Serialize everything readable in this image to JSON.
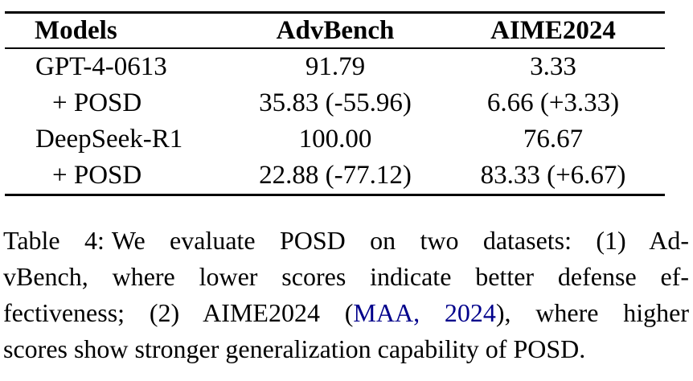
{
  "colors": {
    "text": "#000000",
    "rule": "#000000",
    "citation_link": "#00008b",
    "background": "#ffffff"
  },
  "table": {
    "columns": [
      "Models",
      "AdvBench",
      "AIME2024"
    ],
    "rows": [
      {
        "model": "GPT-4-0613",
        "advbench": "91.79",
        "aime2024": "3.33"
      },
      {
        "model": "+ POSD",
        "advbench": "35.83 (-55.96)",
        "aime2024": "6.66 (+3.33)"
      },
      {
        "model": "DeepSeek-R1",
        "advbench": "100.00",
        "aime2024": "76.67"
      },
      {
        "model": "+ POSD",
        "advbench": "22.88 (-77.12)",
        "aime2024": "83.33 (+6.67)"
      }
    ]
  },
  "caption": {
    "label": "Table 4:",
    "line1_rest": "We evaluate POSD on two datasets: (1) Ad-",
    "line2": "vBench, where lower scores indicate better defense ef-",
    "line3_before": "fectiveness; (2) AIME2024 (",
    "line3_citation": "MAA, 2024",
    "line3_after": "), where higher",
    "line4": "scores show stronger generalization capability of POSD."
  }
}
